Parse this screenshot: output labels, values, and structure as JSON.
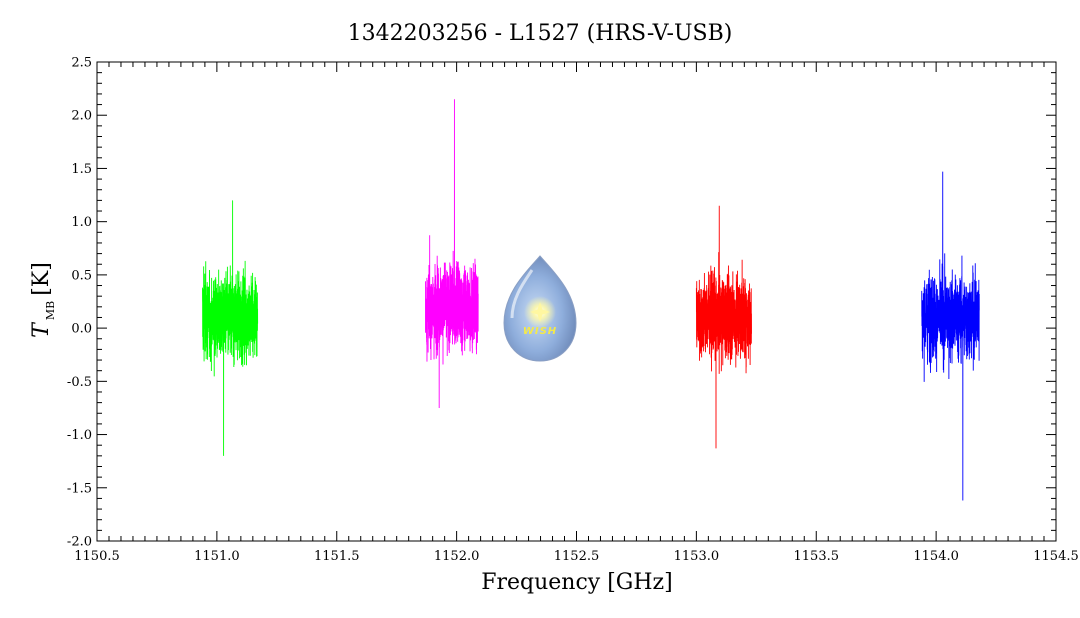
{
  "chart_data": {
    "type": "line",
    "title": "1342203256 - L1527 (HRS-V-USB)",
    "xlabel": "Frequency [GHz]",
    "ylabel": {
      "main": "T",
      "sub": "MB",
      "unit": "[K]"
    },
    "xlim": [
      1150.5,
      1154.5
    ],
    "ylim": [
      -2.0,
      2.5
    ],
    "xticks": [
      1150.5,
      1151.0,
      1151.5,
      1152.0,
      1152.5,
      1153.0,
      1153.5,
      1154.0,
      1154.5
    ],
    "xtick_labels": [
      "1150.5",
      "1151.0",
      "1151.5",
      "1152.0",
      "1152.5",
      "1153.0",
      "1153.5",
      "1154.0",
      "1154.5"
    ],
    "yticks": [
      -2.0,
      -1.5,
      -1.0,
      -0.5,
      0.0,
      0.5,
      1.0,
      1.5,
      2.0,
      2.5
    ],
    "ytick_labels": [
      "-2.0",
      "-1.5",
      "-1.0",
      "-0.5",
      "0.0",
      "0.5",
      "1.0",
      "1.5",
      "2.0",
      "2.5"
    ],
    "grid": false,
    "series": [
      {
        "color": "#00ff00",
        "x_range": [
          1150.94,
          1151.17
        ],
        "mean": 0.1,
        "peak_max": 1.2,
        "peak_min": -1.2
      },
      {
        "color": "#ff00ff",
        "x_range": [
          1151.87,
          1152.09
        ],
        "mean": 0.2,
        "peak_max": 2.15,
        "peak_min": -0.75
      },
      {
        "color": "#ff0000",
        "x_range": [
          1153.0,
          1153.23
        ],
        "mean": 0.1,
        "peak_max": 1.15,
        "peak_min": -1.13
      },
      {
        "color": "#0000ff",
        "x_range": [
          1153.94,
          1154.18
        ],
        "mean": 0.1,
        "peak_max": 1.47,
        "peak_min": -1.62
      }
    ]
  },
  "logo": {
    "name": "wish-logo",
    "text": "WISH"
  }
}
